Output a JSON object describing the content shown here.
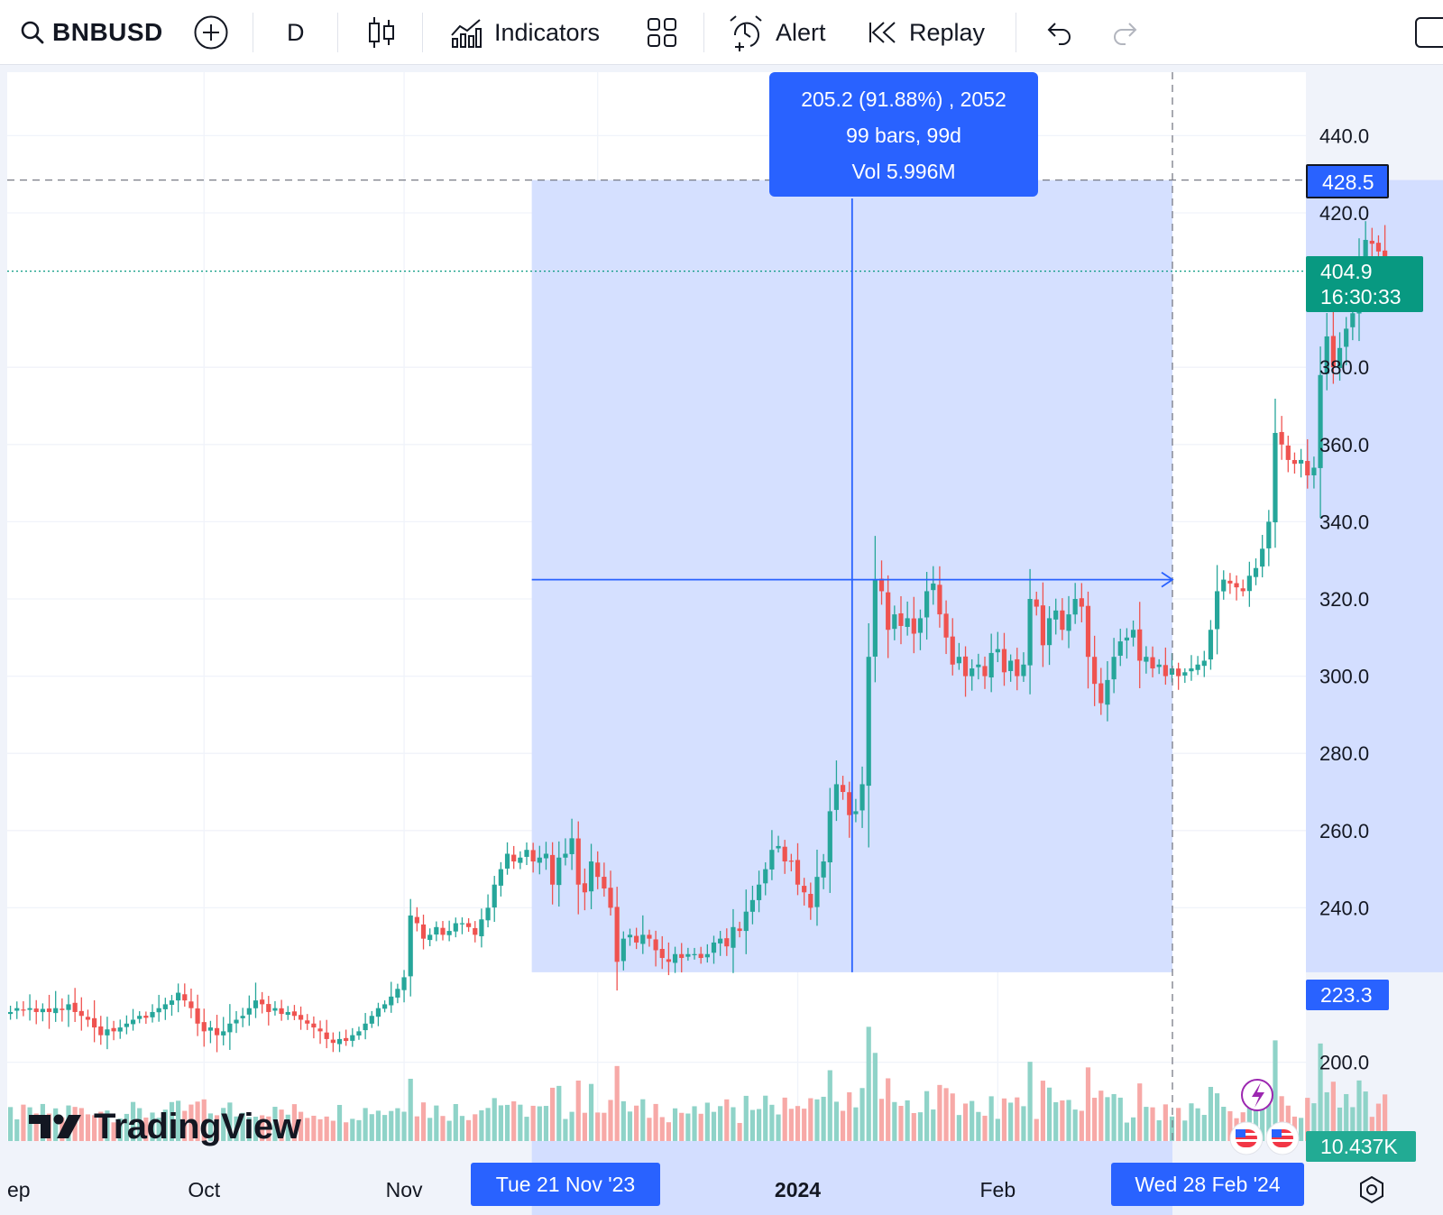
{
  "toolbar": {
    "symbol": "BNBUSD",
    "interval": "D",
    "indicators_label": "Indicators",
    "alert_label": "Alert",
    "replay_label": "Replay",
    "icons": [
      "search-icon",
      "add-symbol-icon",
      "candles-icon",
      "indicators-icon",
      "layouts-icon",
      "alert-icon",
      "replay-icon",
      "undo-icon",
      "redo-icon",
      "fullscreen-icon"
    ]
  },
  "measure": {
    "line1": "205.2 (91.88%) , 2052",
    "line2": "99 bars, 99d",
    "line3": "Vol 5.996M",
    "start_date_label": "Tue 21 Nov '23",
    "end_date_label": "Wed 28 Feb '24",
    "high_label": "428.5",
    "low_label": "223.3"
  },
  "last_price": {
    "value": "404.9",
    "countdown": "16:30:33"
  },
  "volume_label": "10.437K",
  "branding": {
    "logo_text": "TradingView"
  },
  "colors": {
    "up": "#22ab94",
    "down": "#f23645",
    "up_candle": "#26a69a",
    "down_candle": "#ef5350",
    "up_volume": "#8fd3c8",
    "down_volume": "#f7a9a7",
    "measure": "#2962ff",
    "measure_fill": "#d3deff",
    "last_price": "#089981"
  },
  "chart_data": {
    "type": "candlestick",
    "symbol": "BNBUSD",
    "interval": "D",
    "y_ticks": [
      "440.0",
      "420.0",
      "380.0",
      "360.0",
      "340.0",
      "320.0",
      "300.0",
      "280.0",
      "260.0",
      "240.0",
      "200.0"
    ],
    "x_ticks": [
      "ep",
      "Oct",
      "Nov",
      "2024",
      "Feb"
    ],
    "ylim": [
      200,
      440
    ],
    "grid": true,
    "start_date": "2023-09-01",
    "closes": [
      213,
      214,
      213.5,
      214,
      213,
      213.8,
      213,
      214,
      213.5,
      215,
      213,
      212,
      211,
      209,
      207,
      208.5,
      208,
      209,
      210,
      211,
      212,
      211.5,
      213,
      214,
      215,
      216,
      218,
      216,
      214,
      210,
      208,
      209,
      207,
      208,
      210,
      211,
      212,
      214,
      216,
      215,
      213,
      214,
      212.5,
      213,
      212,
      211,
      210,
      209,
      208,
      206,
      205,
      206,
      205.5,
      207,
      208,
      210,
      212,
      214,
      215,
      217,
      219,
      222,
      238,
      236,
      232,
      233,
      235,
      233,
      234,
      236,
      236,
      235,
      233,
      237,
      240,
      246,
      250,
      254,
      252,
      253,
      255,
      252,
      253,
      254,
      246,
      253,
      254,
      258,
      246,
      244,
      252,
      248,
      245,
      240,
      226,
      232,
      233,
      231,
      233,
      232,
      229,
      227,
      226,
      228,
      227,
      228,
      228,
      227,
      228,
      231,
      232,
      230,
      235,
      234,
      239,
      242,
      246,
      250,
      255,
      256,
      252,
      252,
      246,
      244,
      240,
      248,
      252,
      265,
      272,
      270,
      264,
      265,
      272,
      305,
      325,
      322,
      312,
      316,
      313,
      315,
      311,
      315,
      322,
      324,
      316,
      310,
      303,
      305,
      300,
      302,
      303,
      300,
      306,
      307,
      301,
      304,
      300,
      303,
      320,
      318,
      308,
      315,
      317,
      312,
      316,
      320,
      318,
      305,
      298,
      293,
      299,
      305,
      309,
      310,
      312,
      304,
      305,
      302,
      303,
      300,
      302,
      300,
      301,
      302,
      303,
      304,
      312,
      322,
      325,
      324,
      323,
      322,
      326,
      328,
      333,
      340,
      363,
      360,
      356,
      355,
      356,
      352,
      354,
      378,
      388,
      380,
      385,
      390,
      394,
      405,
      413,
      412,
      410,
      403
    ],
    "volume_axis": "10.437K",
    "last_close": 404.9,
    "measure": {
      "from_date": "2023-11-21",
      "to_date": "2024-02-28",
      "from_price": 223.3,
      "to_price": 428.5,
      "change": 205.2,
      "change_pct": 91.88,
      "bars": 99,
      "volume": "5.996M"
    }
  }
}
